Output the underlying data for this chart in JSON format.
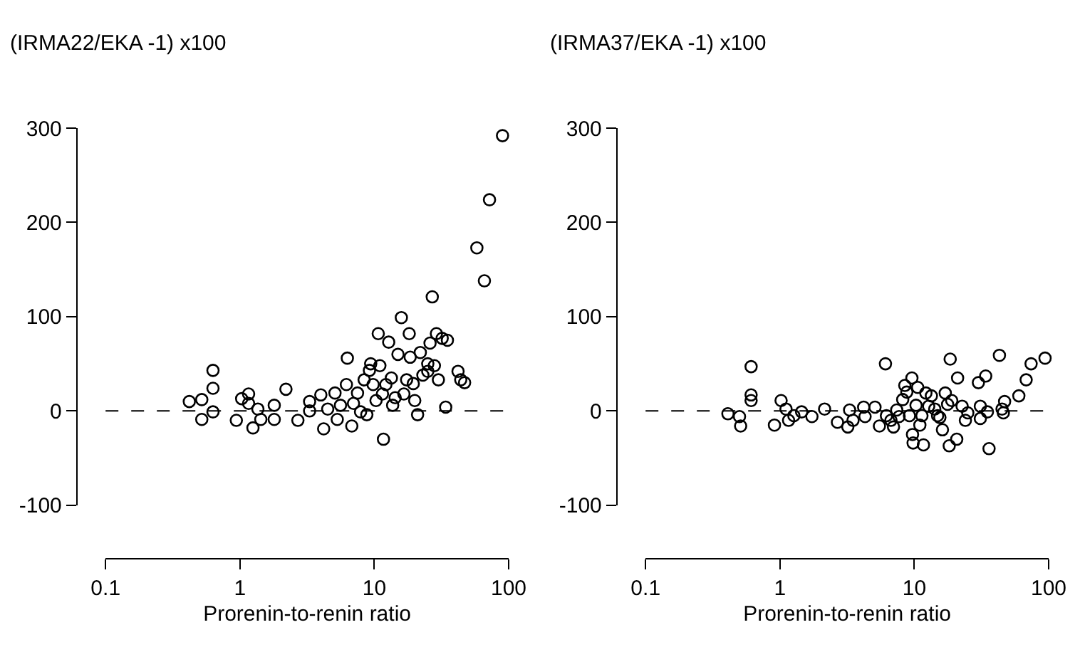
{
  "chart_data": [
    {
      "type": "scatter",
      "ylabel": "(IRMA22/EKA -1) x100",
      "xlabel": "Prorenin-to-renin ratio",
      "log": "x",
      "grid": false,
      "marker": "circle",
      "xlim": [
        0.1,
        100
      ],
      "xticks": [
        0.1,
        1,
        10,
        100
      ],
      "ylim": [
        -100,
        300
      ],
      "yticks": [
        -100,
        0,
        100,
        200,
        300
      ],
      "ref_lines": [
        {
          "axis": "y",
          "value": 0,
          "line_style": "dashed",
          "color": "#000000"
        }
      ],
      "series": [
        {
          "color": "#000000",
          "x": [
            0.42,
            0.52,
            0.63,
            0.63,
            0.63,
            0.52,
            0.94,
            1.03,
            1.16,
            1.16,
            1.25,
            1.36,
            1.43,
            1.8,
            1.8,
            2.2,
            2.7,
            3.3,
            3.3,
            4.0,
            4.2,
            4.5,
            5.1,
            5.3,
            5.6,
            6.2,
            6.3,
            6.8,
            7.0,
            7.5,
            7.9,
            8.4,
            8.8,
            9.2,
            9.4,
            9.8,
            10.3,
            10.7,
            11,
            11.5,
            11.7,
            12.2,
            12.8,
            13.4,
            13.7,
            14.3,
            15,
            15.9,
            16.6,
            17.4,
            18.2,
            18.5,
            19.5,
            20,
            21,
            22,
            23,
            25,
            26,
            27,
            25,
            28,
            29,
            30,
            32,
            34,
            35,
            42,
            44,
            47,
            58,
            66,
            72,
            90
          ],
          "values": [
            10,
            12,
            43,
            24,
            -1,
            -9,
            -10,
            13,
            18,
            8,
            -18,
            2,
            -9,
            6,
            -9,
            23,
            -10,
            10,
            0,
            17,
            -19,
            2,
            19,
            -9,
            6,
            28,
            56,
            -16,
            8,
            19,
            -1,
            33,
            -4,
            43,
            50,
            28,
            11,
            82,
            48,
            18,
            -30,
            28,
            73,
            35,
            6,
            14,
            60,
            99,
            18,
            33,
            82,
            57,
            29,
            11,
            -4,
            62,
            38,
            50,
            72,
            121,
            42,
            48,
            82,
            33,
            77,
            4,
            75,
            42,
            33,
            30,
            173,
            138,
            224,
            292
          ]
        }
      ]
    },
    {
      "type": "scatter",
      "ylabel": "(IRMA37/EKA -1) x100",
      "xlabel": "Prorenin-to-renin ratio",
      "log": "x",
      "grid": false,
      "marker": "circle",
      "xlim": [
        0.1,
        100
      ],
      "xticks": [
        0.1,
        1,
        10,
        100
      ],
      "ylim": [
        -100,
        300
      ],
      "yticks": [
        -100,
        0,
        100,
        200,
        300
      ],
      "ref_lines": [
        {
          "axis": "y",
          "value": 0,
          "line_style": "dashed",
          "color": "#000000"
        }
      ],
      "series": [
        {
          "color": "#000000",
          "x": [
            0.41,
            0.5,
            0.51,
            0.61,
            0.61,
            0.61,
            0.91,
            1.02,
            1.11,
            1.16,
            1.27,
            1.45,
            1.73,
            2.15,
            2.68,
            3.2,
            3.3,
            3.5,
            4.2,
            4.3,
            5.1,
            5.5,
            6.1,
            6.2,
            6.7,
            7.0,
            7.4,
            7.7,
            8.2,
            8.5,
            8.8,
            9.2,
            9.6,
            9.7,
            9.8,
            10.3,
            10.6,
            11,
            11.4,
            11.7,
            12.2,
            12.8,
            13.4,
            14.2,
            14.9,
            15.5,
            16.2,
            17,
            17.7,
            18.2,
            18.5,
            19,
            20.7,
            21,
            22.7,
            24,
            25,
            30,
            31,
            31,
            34,
            35,
            36,
            43,
            45,
            46,
            47,
            60,
            68,
            74,
            94
          ],
          "values": [
            -3,
            -6,
            -16,
            47,
            17,
            11,
            -15,
            11,
            2,
            -10,
            -5,
            -1,
            -6,
            2,
            -12,
            -17,
            1,
            -10,
            4,
            -6,
            4,
            -16,
            50,
            -5,
            -10,
            -17,
            1,
            -6,
            12,
            27,
            20,
            -5,
            35,
            -25,
            -34,
            6,
            25,
            -15,
            -5,
            -36,
            19,
            5,
            16,
            2,
            -5,
            -7,
            -20,
            19,
            7,
            -37,
            55,
            11,
            -30,
            35,
            5,
            -10,
            -2,
            30,
            5,
            -8,
            37,
            -1,
            -40,
            59,
            2,
            -2,
            10,
            16,
            33,
            50,
            56
          ]
        }
      ]
    }
  ]
}
